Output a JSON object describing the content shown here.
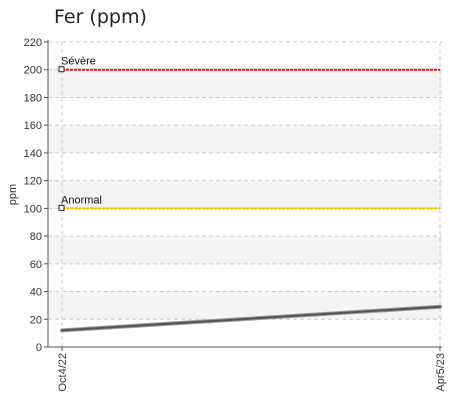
{
  "chart_data": {
    "type": "line",
    "title": "Fer (ppm)",
    "ylabel": "ppm",
    "xlabel": "",
    "ylim": [
      0,
      220
    ],
    "yticks": [
      0,
      20,
      40,
      60,
      80,
      100,
      120,
      140,
      160,
      180,
      200,
      220
    ],
    "x": [
      "Oct4/22",
      "Apr5/23"
    ],
    "series": [
      {
        "values": [
          12,
          29
        ],
        "color": "#555555"
      }
    ],
    "thresholds": [
      {
        "label": "Sévère",
        "value": 200,
        "color": "#e8141b"
      },
      {
        "label": "Anormal",
        "value": 100,
        "color": "#f2c200"
      }
    ],
    "grid": true,
    "legend": "none"
  }
}
